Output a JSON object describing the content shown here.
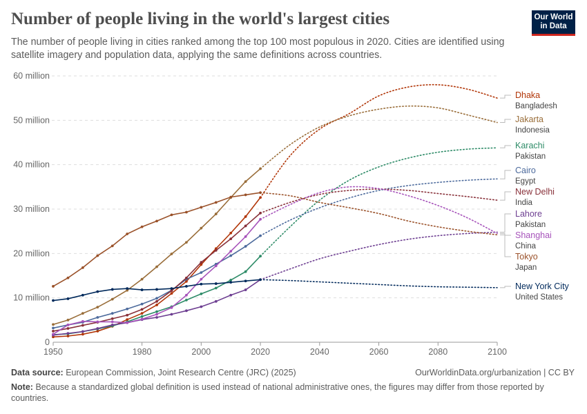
{
  "header": {
    "title": "Number of people living in the world's largest cities",
    "subtitle": "The number of people living in cities ranked among the top 100 most populous in 2020. Cities are identified using satellite imagery and population data, applying the same definitions across countries.",
    "logo": "Our World in Data"
  },
  "chart_data": {
    "type": "line",
    "title": "Number of people living in the world's largest cities",
    "xlim": [
      1950,
      2100
    ],
    "ylim": [
      0,
      60000000
    ],
    "y_ticks": [
      {
        "v": 0,
        "label": "0"
      },
      {
        "v": 10000000,
        "label": "10 million"
      },
      {
        "v": 20000000,
        "label": "20 million"
      },
      {
        "v": 30000000,
        "label": "30 million"
      },
      {
        "v": 40000000,
        "label": "40 million"
      },
      {
        "v": 50000000,
        "label": "50 million"
      },
      {
        "v": 60000000,
        "label": "60 million"
      }
    ],
    "x_ticks": [
      1950,
      1980,
      2000,
      2020,
      2040,
      2060,
      2080,
      2100
    ],
    "grid": "horizontal dashed",
    "legend": "right, labels at line ends",
    "observed_years": [
      1950,
      1955,
      1960,
      1965,
      1970,
      1975,
      1980,
      1985,
      1990,
      1995,
      2000,
      2005,
      2010,
      2015,
      2020
    ],
    "projected_years": [
      2020,
      2030,
      2040,
      2050,
      2060,
      2070,
      2080,
      2090,
      2100
    ],
    "series": [
      {
        "name": "Dhaka",
        "country": "Bangladesh",
        "color": "#b13507",
        "observed": [
          1.2,
          1.4,
          1.8,
          2.5,
          3.6,
          5.1,
          6.5,
          8.4,
          11.0,
          13.7,
          17.5,
          21.1,
          24.6,
          28.3,
          32.6
        ],
        "projected": [
          32.6,
          42,
          48,
          51.5,
          55.5,
          57.5,
          58,
          57,
          55
        ]
      },
      {
        "name": "Jakarta",
        "country": "Indonesia",
        "color": "#996d39",
        "observed": [
          4.0,
          5.0,
          6.5,
          7.9,
          9.7,
          11.7,
          14.2,
          17.0,
          19.9,
          22.5,
          25.7,
          28.9,
          32.6,
          36.2,
          39.1
        ],
        "projected": [
          39.1,
          44.5,
          48.5,
          51,
          52.5,
          53.2,
          52.8,
          51.2,
          49.5
        ]
      },
      {
        "name": "Karachi",
        "country": "Pakistan",
        "color": "#2d8b67",
        "observed": [
          1.7,
          1.9,
          2.4,
          3.0,
          3.7,
          4.6,
          5.8,
          6.9,
          8.0,
          9.5,
          10.9,
          12.2,
          14.0,
          15.9,
          19.4
        ],
        "projected": [
          19.4,
          26,
          32,
          36.5,
          39.5,
          41.5,
          42.8,
          43.5,
          43.8
        ]
      },
      {
        "name": "Cairo",
        "country": "Egypt",
        "color": "#4c6a9c",
        "observed": [
          3.2,
          3.9,
          4.5,
          5.6,
          6.5,
          7.5,
          8.6,
          9.9,
          11.7,
          14.2,
          15.7,
          17.6,
          19.5,
          21.6,
          24.0
        ],
        "projected": [
          24.0,
          27.5,
          30.3,
          32.5,
          34.2,
          35.3,
          36,
          36.5,
          36.8
        ]
      },
      {
        "name": "New Delhi",
        "country": "India",
        "color": "#883039",
        "observed": [
          2.5,
          3.1,
          3.8,
          4.5,
          5.3,
          6.1,
          7.4,
          9.2,
          11.6,
          14.5,
          18.0,
          20.7,
          23.3,
          26.2,
          29.1
        ],
        "projected": [
          29.1,
          31.5,
          33.3,
          34.2,
          34.5,
          34.2,
          33.5,
          32.8,
          32
        ]
      },
      {
        "name": "Lahore",
        "country": "Pakistan",
        "color": "#6d3e91",
        "observed": [
          1.6,
          2.0,
          2.4,
          3.1,
          3.9,
          4.4,
          5.1,
          5.6,
          6.3,
          7.1,
          8.0,
          9.2,
          10.6,
          11.8,
          14.1
        ],
        "projected": [
          14.1,
          16.5,
          18.8,
          20.5,
          22,
          23.2,
          24,
          24.5,
          24.8
        ]
      },
      {
        "name": "Shanghai",
        "country": "China",
        "color": "#a652ba",
        "observed": [
          1.8,
          3.9,
          4.7,
          4.6,
          4.6,
          4.4,
          5.2,
          6.3,
          7.8,
          10.6,
          14.2,
          17.2,
          20.5,
          23.8,
          27.7
        ],
        "projected": [
          27.7,
          31,
          33.7,
          35,
          34.6,
          33,
          30.8,
          28,
          24.5
        ]
      },
      {
        "name": "Tokyo",
        "country": "Japan",
        "color": "#9a5129",
        "observed": [
          12.6,
          14.5,
          16.8,
          19.5,
          21.7,
          24.4,
          26.0,
          27.3,
          28.7,
          29.3,
          30.4,
          31.5,
          32.7,
          33.2,
          33.7
        ],
        "projected": [
          33.7,
          33,
          31.5,
          30.3,
          29,
          27.3,
          26,
          25,
          24.2
        ]
      },
      {
        "name": "New York City",
        "country": "United States",
        "color": "#00295b",
        "observed": [
          9.4,
          9.8,
          10.6,
          11.4,
          11.9,
          12.1,
          11.8,
          11.9,
          12.1,
          12.6,
          13.1,
          13.2,
          13.5,
          13.8,
          14.1
        ],
        "projected": [
          14.1,
          13.9,
          13.6,
          13.3,
          13,
          12.7,
          12.5,
          12.4,
          12.3
        ]
      }
    ],
    "value_unit": "million people"
  },
  "footer": {
    "source_label": "Data source:",
    "source": "European Commission, Joint Research Centre (JRC) (2025)",
    "url": "OurWorldinData.org/urbanization | CC BY",
    "note_label": "Note:",
    "note": "Because a standardized global definition is used instead of national administrative ones, the figures may differ from those reported by countries."
  }
}
